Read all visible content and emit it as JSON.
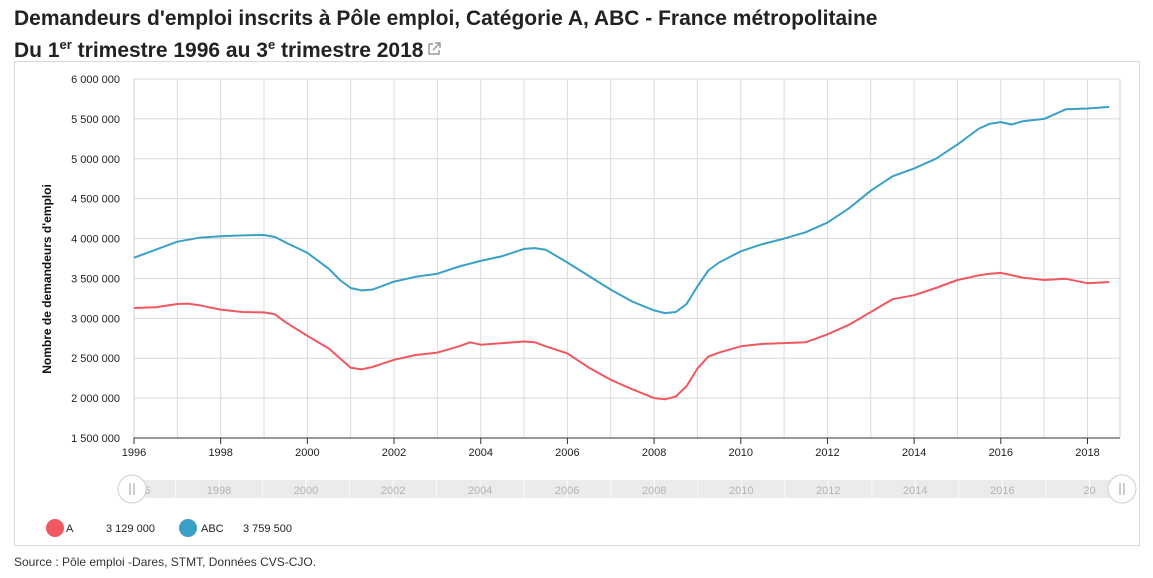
{
  "header": {
    "title_line1": "Demandeurs d'emploi inscrits à Pôle emploi, Catégorie A, ABC - France métropolitaine",
    "title_line2_a": "Du 1",
    "title_line2_sup1": "er",
    "title_line2_b": " trimestre 1996 au 3",
    "title_line2_sup2": "e",
    "title_line2_c": " trimestre 2018"
  },
  "source": "Source : Pôle emploi -Dares, STMT, Données CVS-CJO.",
  "chart_data": {
    "type": "line",
    "ylabel": "Nombre de demandeurs d'emploi",
    "ylim": [
      1500000,
      6000000
    ],
    "yticks": [
      1500000,
      2000000,
      2500000,
      3000000,
      3500000,
      4000000,
      4500000,
      5000000,
      5500000,
      6000000
    ],
    "ytick_labels": [
      "1 500 000",
      "2 000 000",
      "2 500 000",
      "3 000 000",
      "3 500 000",
      "4 000 000",
      "4 500 000",
      "5 000 000",
      "5 500 000",
      "6 000 000"
    ],
    "xlim": [
      1996.0,
      2018.75
    ],
    "xticks": [
      "1996",
      "1998",
      "2000",
      "2002",
      "2004",
      "2006",
      "2008",
      "2010",
      "2012",
      "2014",
      "2016",
      "2018"
    ],
    "grid": true,
    "legend_position": "bottom-left",
    "navigator_labels": [
      "96",
      "1998",
      "2000",
      "2002",
      "2004",
      "2006",
      "2008",
      "2010",
      "2012",
      "2014",
      "2016",
      "20"
    ],
    "series": [
      {
        "name": "A",
        "color": "#f0585f",
        "legend_value": "3 129 000",
        "x": [
          1996.0,
          1996.5,
          1997.0,
          1997.25,
          1997.5,
          1998.0,
          1998.5,
          1999.0,
          1999.25,
          1999.5,
          2000.0,
          2000.5,
          2000.75,
          2001.0,
          2001.25,
          2001.5,
          2002.0,
          2002.5,
          2003.0,
          2003.5,
          2003.75,
          2004.0,
          2004.5,
          2005.0,
          2005.25,
          2005.5,
          2006.0,
          2006.5,
          2007.0,
          2007.5,
          2008.0,
          2008.25,
          2008.5,
          2008.75,
          2009.0,
          2009.25,
          2009.5,
          2010.0,
          2010.5,
          2011.0,
          2011.5,
          2012.0,
          2012.5,
          2013.0,
          2013.5,
          2014.0,
          2014.5,
          2015.0,
          2015.5,
          2015.75,
          2016.0,
          2016.5,
          2017.0,
          2017.5,
          2018.0,
          2018.5
        ],
        "y": [
          3129000,
          3140000,
          3180000,
          3185000,
          3165000,
          3110000,
          3080000,
          3075000,
          3050000,
          2950000,
          2780000,
          2620000,
          2500000,
          2380000,
          2360000,
          2390000,
          2480000,
          2540000,
          2570000,
          2650000,
          2700000,
          2670000,
          2690000,
          2710000,
          2700000,
          2650000,
          2560000,
          2380000,
          2230000,
          2110000,
          2000000,
          1985000,
          2020000,
          2150000,
          2370000,
          2520000,
          2570000,
          2650000,
          2680000,
          2690000,
          2700000,
          2800000,
          2920000,
          3080000,
          3240000,
          3290000,
          3380000,
          3480000,
          3540000,
          3560000,
          3570000,
          3510000,
          3480000,
          3495000,
          3440000,
          3455000
        ]
      },
      {
        "name": "ABC",
        "color": "#3ba0c8",
        "legend_value": "3 759 500",
        "x": [
          1996.0,
          1996.5,
          1997.0,
          1997.5,
          1998.0,
          1998.5,
          1999.0,
          1999.25,
          1999.5,
          2000.0,
          2000.5,
          2000.75,
          2001.0,
          2001.25,
          2001.5,
          2002.0,
          2002.5,
          2003.0,
          2003.5,
          2004.0,
          2004.5,
          2005.0,
          2005.25,
          2005.5,
          2006.0,
          2006.5,
          2007.0,
          2007.5,
          2008.0,
          2008.25,
          2008.5,
          2008.75,
          2009.0,
          2009.25,
          2009.5,
          2010.0,
          2010.5,
          2011.0,
          2011.5,
          2012.0,
          2012.5,
          2013.0,
          2013.5,
          2014.0,
          2014.5,
          2015.0,
          2015.5,
          2015.75,
          2016.0,
          2016.25,
          2016.5,
          2017.0,
          2017.5,
          2018.0,
          2018.5
        ],
        "y": [
          3759500,
          3860000,
          3960000,
          4010000,
          4030000,
          4040000,
          4045000,
          4020000,
          3950000,
          3820000,
          3620000,
          3480000,
          3380000,
          3350000,
          3360000,
          3460000,
          3520000,
          3560000,
          3650000,
          3720000,
          3780000,
          3870000,
          3880000,
          3860000,
          3700000,
          3530000,
          3360000,
          3210000,
          3100000,
          3065000,
          3080000,
          3180000,
          3400000,
          3600000,
          3700000,
          3840000,
          3930000,
          4000000,
          4080000,
          4200000,
          4380000,
          4600000,
          4780000,
          4880000,
          5000000,
          5180000,
          5380000,
          5440000,
          5460000,
          5430000,
          5470000,
          5500000,
          5620000,
          5630000,
          5650000
        ]
      }
    ]
  }
}
